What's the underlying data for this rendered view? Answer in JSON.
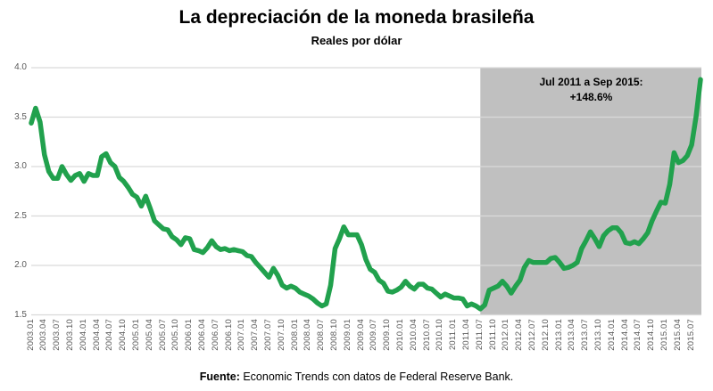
{
  "title": "La depreciación de la moneda brasileña",
  "subtitle": "Reales por dólar",
  "annotation": {
    "line1": "Jul 2011 a Sep 2015:",
    "line2": "+148.6%"
  },
  "footer": {
    "bold": "Fuente:",
    "text": " Economic Trends con datos de Federal Reserve Bank."
  },
  "colors": {
    "line": "#21A14D",
    "shade": "#C0C0C0",
    "grid": "#D9D9D9",
    "axis_text": "#595959",
    "text": "#000000"
  },
  "chart_data": {
    "type": "line",
    "title": "La depreciación de la moneda brasileña",
    "subtitle": "Reales por dólar",
    "xlabel": "",
    "ylabel": "Reales por dólar",
    "ylim": [
      1.5,
      4.0
    ],
    "yticks": [
      4.0,
      3.5,
      3.0,
      2.5,
      2.0,
      1.5
    ],
    "grid": true,
    "legend": false,
    "x_start": "2003.01",
    "x_end": "2015.09",
    "xtick_labels": [
      "2003.01",
      "2003.04",
      "2003.07",
      "2003.10",
      "2004.01",
      "2004.04",
      "2004.07",
      "2004.10",
      "2005.01",
      "2005.04",
      "2005.07",
      "2005.10",
      "2006.01",
      "2006.04",
      "2006.07",
      "2006.10",
      "2007.01",
      "2007.04",
      "2007.07",
      "2007.10",
      "2008.01",
      "2008.04",
      "2008.07",
      "2008.10",
      "2009.01",
      "2009.04",
      "2009.07",
      "2009.10",
      "2010.01",
      "2010.04",
      "2010.07",
      "2010.10",
      "2011.01",
      "2011.04",
      "2011.07",
      "2011.10",
      "2012.01",
      "2012.04",
      "2012.07",
      "2012.10",
      "2013.01",
      "2013.04",
      "2013.07",
      "2013.10",
      "2014.01",
      "2014.04",
      "2014.07",
      "2014.10",
      "2015.01",
      "2015.04",
      "2015.07"
    ],
    "shaded_region": {
      "from": "2011.07",
      "to": "2015.09",
      "label": "Jul 2011 a Sep 2015: +148.6%",
      "change_pct": 148.6
    },
    "series": [
      {
        "name": "Reales por dólar (BRL/USD)",
        "monthly_values": [
          3.44,
          3.59,
          3.45,
          3.12,
          2.95,
          2.88,
          2.88,
          3.0,
          2.92,
          2.86,
          2.91,
          2.93,
          2.85,
          2.93,
          2.91,
          2.91,
          3.1,
          3.13,
          3.04,
          3.0,
          2.89,
          2.85,
          2.79,
          2.72,
          2.69,
          2.6,
          2.7,
          2.58,
          2.45,
          2.41,
          2.37,
          2.36,
          2.29,
          2.26,
          2.21,
          2.28,
          2.27,
          2.16,
          2.15,
          2.13,
          2.18,
          2.25,
          2.19,
          2.16,
          2.17,
          2.15,
          2.16,
          2.15,
          2.14,
          2.1,
          2.09,
          2.03,
          1.98,
          1.93,
          1.88,
          1.97,
          1.9,
          1.8,
          1.77,
          1.79,
          1.77,
          1.73,
          1.71,
          1.69,
          1.66,
          1.62,
          1.59,
          1.61,
          1.8,
          2.17,
          2.27,
          2.39,
          2.31,
          2.31,
          2.31,
          2.21,
          2.06,
          1.96,
          1.93,
          1.85,
          1.82,
          1.74,
          1.73,
          1.75,
          1.78,
          1.84,
          1.79,
          1.76,
          1.81,
          1.81,
          1.77,
          1.76,
          1.72,
          1.68,
          1.71,
          1.69,
          1.67,
          1.67,
          1.66,
          1.59,
          1.61,
          1.59,
          1.56,
          1.6,
          1.75,
          1.77,
          1.79,
          1.84,
          1.79,
          1.72,
          1.79,
          1.85,
          1.98,
          2.05,
          2.03,
          2.03,
          2.03,
          2.03,
          2.07,
          2.08,
          2.03,
          1.97,
          1.98,
          2.0,
          2.03,
          2.17,
          2.25,
          2.34,
          2.27,
          2.19,
          2.3,
          2.35,
          2.38,
          2.38,
          2.33,
          2.23,
          2.22,
          2.24,
          2.22,
          2.27,
          2.33,
          2.45,
          2.55,
          2.64,
          2.63,
          2.82,
          3.14,
          3.04,
          3.06,
          3.11,
          3.22,
          3.51,
          3.88
        ]
      }
    ]
  }
}
